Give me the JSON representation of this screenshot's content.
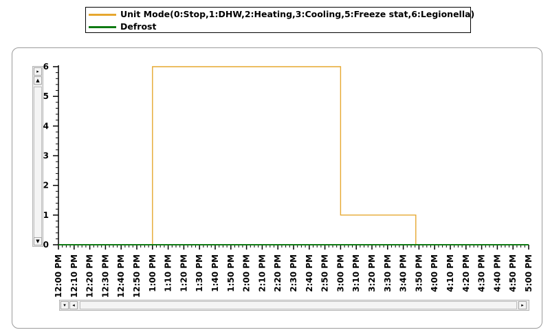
{
  "chart_data": {
    "type": "line",
    "title": "",
    "xlabel": "",
    "ylabel": "",
    "ylim": [
      0,
      6
    ],
    "yticks": [
      "0",
      "1",
      "2",
      "3",
      "4",
      "5",
      "6"
    ],
    "x_tick_labels": [
      "12:00 PM",
      "12:10 PM",
      "12:20 PM",
      "12:30 PM",
      "12:40 PM",
      "12:50 PM",
      "1:00 PM",
      "1:10 PM",
      "1:20 PM",
      "1:30 PM",
      "1:40 PM",
      "1:50 PM",
      "2:00 PM",
      "2:10 PM",
      "2:20 PM",
      "2:30 PM",
      "2:40 PM",
      "2:50 PM",
      "3:00 PM",
      "3:10 PM",
      "3:20 PM",
      "3:30 PM",
      "3:40 PM",
      "3:50 PM",
      "4:00 PM",
      "4:10 PM",
      "4:20 PM",
      "4:30 PM",
      "4:40 PM",
      "4:50 PM",
      "5:00 PM"
    ],
    "xlim": [
      "12:00 PM",
      "5:00 PM"
    ],
    "grid": false,
    "legend_position": "top",
    "series": [
      {
        "name": "Unit  Mode(0:Stop,1:DHW,2:Heating,3:Cooling,5:Freeze  stat,6:Legionella)",
        "color": "#E6A72F",
        "step": true,
        "points": [
          [
            "12:00 PM",
            0
          ],
          [
            "1:00 PM",
            0
          ],
          [
            "1:00 PM",
            6
          ],
          [
            "3:00 PM",
            6
          ],
          [
            "3:00 PM",
            1
          ],
          [
            "3:48 PM",
            1
          ],
          [
            "3:48 PM",
            0
          ],
          [
            "5:00 PM",
            0
          ]
        ]
      },
      {
        "name": "Defrost",
        "color": "#0E7A12",
        "step": true,
        "points": [
          [
            "12:00 PM",
            0
          ],
          [
            "5:00 PM",
            0
          ]
        ]
      }
    ]
  },
  "scrollbars": {
    "v_up_arrow": "▲",
    "v_right_arrow": "▸",
    "v_down_arrow": "▼",
    "h_left_arrow": "◂",
    "h_down_arrow": "▾",
    "h_right_arrow": "▸"
  }
}
